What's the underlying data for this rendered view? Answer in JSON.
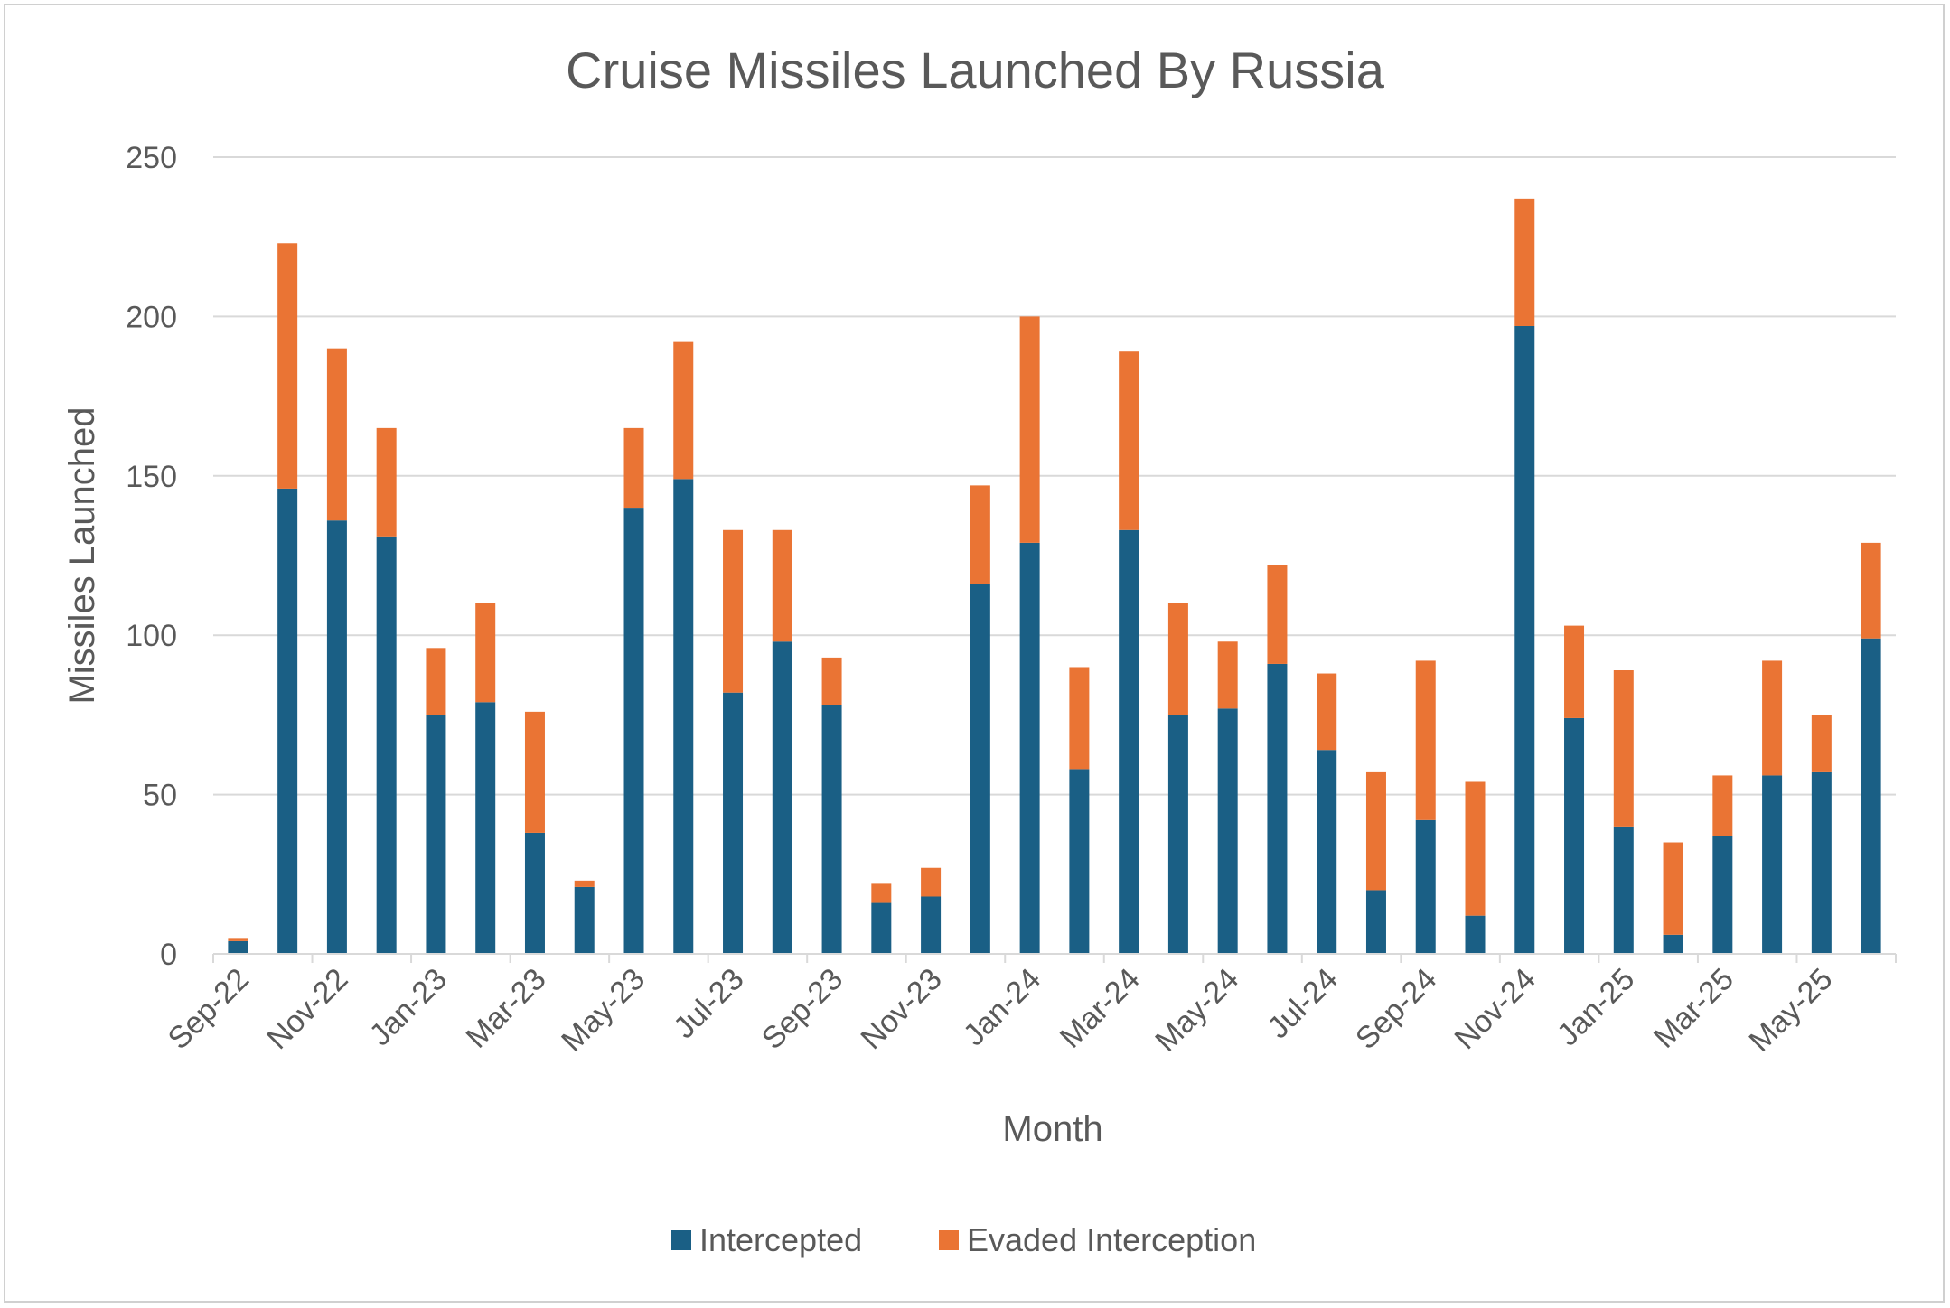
{
  "chart_data": {
    "type": "bar",
    "stacked": true,
    "title": "Cruise Missiles Launched By Russia",
    "xlabel": "Month",
    "ylabel": "Missiles Launched",
    "ylim": [
      0,
      250
    ],
    "yticks": [
      0,
      50,
      100,
      150,
      200,
      250
    ],
    "grid": true,
    "legend_position": "bottom",
    "categories": [
      "Sep-22",
      "Oct-22",
      "Nov-22",
      "Dec-22",
      "Jan-23",
      "Feb-23",
      "Mar-23",
      "Apr-23",
      "May-23",
      "Jun-23",
      "Jul-23",
      "Aug-23",
      "Sep-23",
      "Oct-23",
      "Nov-23",
      "Dec-23",
      "Jan-24",
      "Feb-24",
      "Mar-24",
      "Apr-24",
      "May-24",
      "Jun-24",
      "Jul-24",
      "Aug-24",
      "Sep-24",
      "Oct-24",
      "Nov-24",
      "Dec-24",
      "Jan-25",
      "Feb-25",
      "Mar-25",
      "Apr-25",
      "May-25",
      "Jun-25"
    ],
    "tick_labels": [
      "Sep-22",
      "Nov-22",
      "Jan-23",
      "Mar-23",
      "May-23",
      "Jul-23",
      "Sep-23",
      "Nov-23",
      "Jan-24",
      "Mar-24",
      "May-24",
      "Jul-24",
      "Sep-24",
      "Nov-24",
      "Jan-25",
      "Mar-25",
      "May-25"
    ],
    "series": [
      {
        "name": "Intercepted",
        "color": "#1a5f85",
        "values": [
          4,
          146,
          136,
          131,
          75,
          79,
          38,
          21,
          140,
          149,
          82,
          98,
          78,
          16,
          18,
          116,
          129,
          58,
          133,
          75,
          77,
          91,
          64,
          20,
          42,
          12,
          197,
          74,
          40,
          6,
          37,
          56,
          57,
          99
        ]
      },
      {
        "name": "Evaded Interception",
        "color": "#ea7434",
        "values": [
          1,
          77,
          54,
          34,
          21,
          31,
          38,
          2,
          25,
          43,
          51,
          35,
          15,
          6,
          9,
          31,
          71,
          32,
          56,
          35,
          21,
          31,
          24,
          37,
          50,
          42,
          40,
          29,
          49,
          29,
          19,
          36,
          18,
          30
        ]
      }
    ]
  }
}
